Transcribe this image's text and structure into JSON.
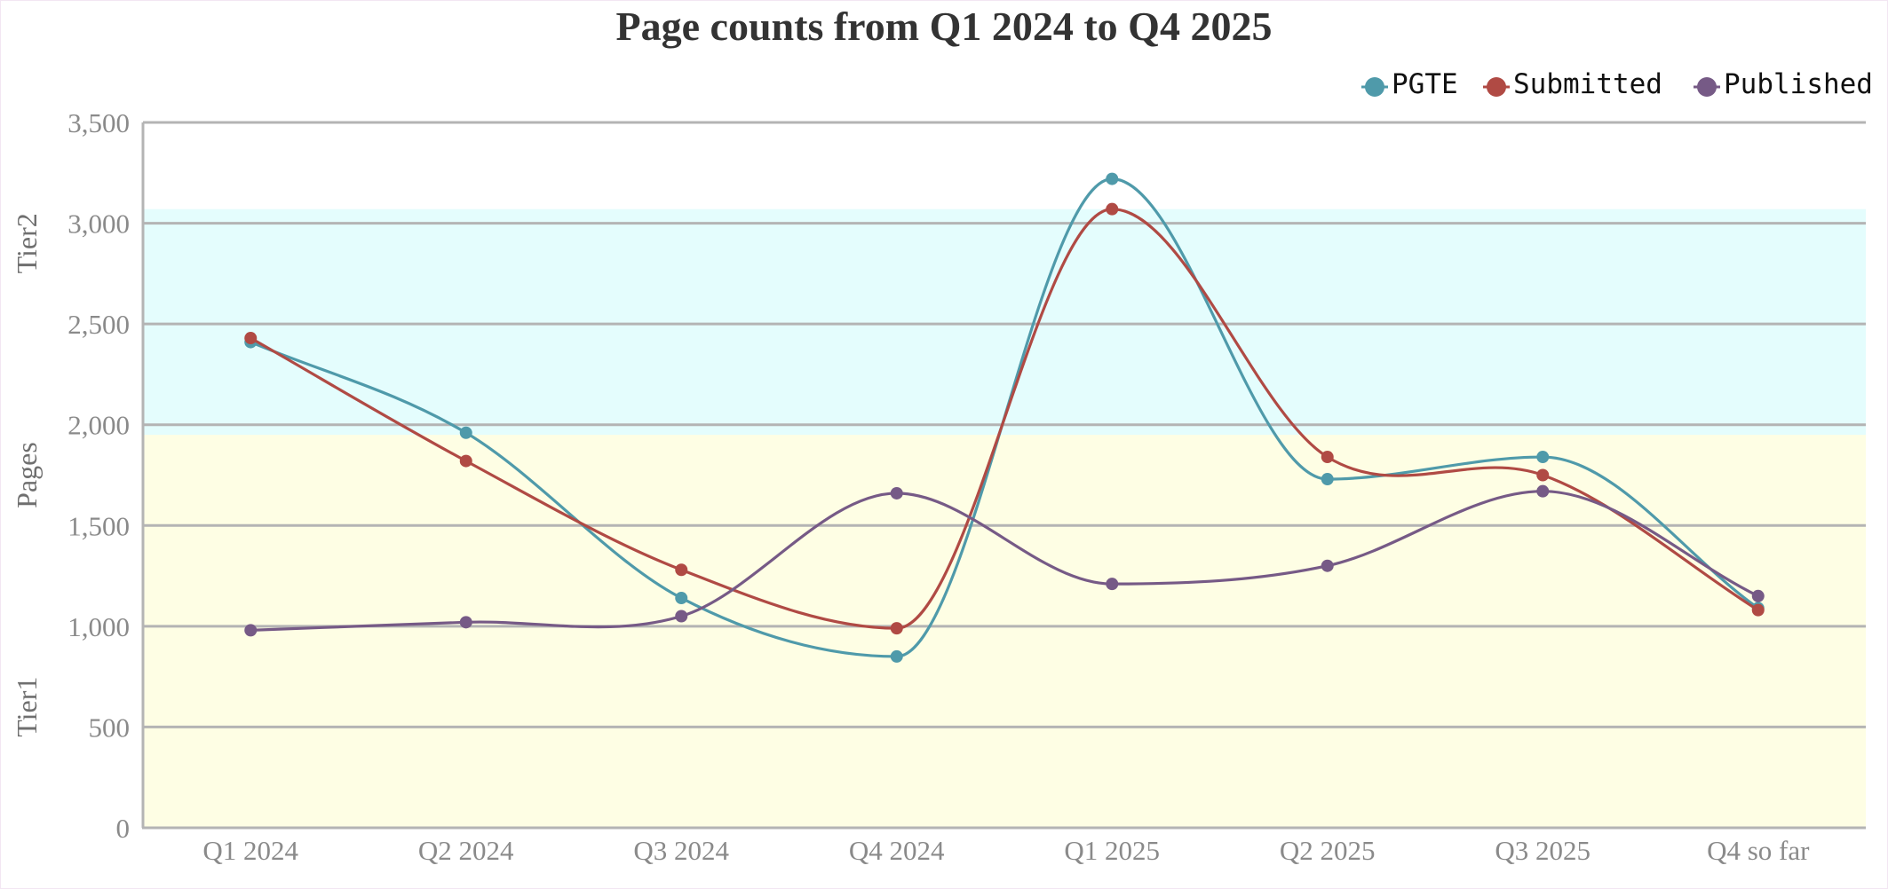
{
  "chart_data": {
    "type": "line",
    "title": "Page counts from Q1 2024 to Q4 2025",
    "xlabel": "",
    "ylabel": "Pages",
    "categories": [
      "Q1 2024",
      "Q2 2024",
      "Q3 2024",
      "Q4 2024",
      "Q1 2025",
      "Q2 2025",
      "Q3 2025",
      "Q4 so far"
    ],
    "ylim": [
      0,
      3500
    ],
    "yticks": [
      0,
      500,
      1000,
      1500,
      2000,
      2500,
      3000,
      3500
    ],
    "ytick_labels": [
      "0",
      "500",
      "1,000",
      "1,500",
      "2,000",
      "2,500",
      "3,000",
      "3,500"
    ],
    "grid": true,
    "smooth": true,
    "legend_position": "top-right",
    "bands": [
      {
        "label": "Tier1",
        "from": 0,
        "to": 1950,
        "color": "#fefee4"
      },
      {
        "label": "Tier2",
        "from": 1950,
        "to": 3070,
        "color": "#e4fdfd"
      }
    ],
    "series": [
      {
        "name": "PGTE",
        "color": "#4f9aaa",
        "values": [
          2410,
          1960,
          1140,
          850,
          3220,
          1730,
          1840,
          1090
        ]
      },
      {
        "name": "Submitted",
        "color": "#b04a44",
        "values": [
          2430,
          1820,
          1280,
          990,
          3070,
          1840,
          1750,
          1080
        ]
      },
      {
        "name": "Published",
        "color": "#765a86",
        "values": [
          980,
          1020,
          1050,
          1660,
          1210,
          1300,
          1670,
          1150
        ]
      }
    ]
  }
}
